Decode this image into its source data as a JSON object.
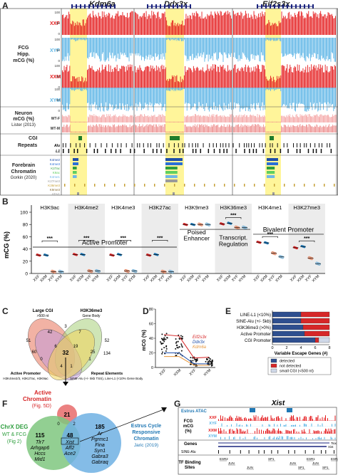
{
  "panelA": {
    "letter": "A",
    "genes": [
      "Kdm6a",
      "Ddx3x",
      "Eif2s3x"
    ],
    "fcg_title": [
      "FCG",
      "Hipp.",
      "mCG (%)"
    ],
    "fcg_tracks": [
      "XXF",
      "XYF",
      "XXM",
      "XYM"
    ],
    "track_ticks": [
      "100",
      "50",
      "0"
    ],
    "neuron_title": [
      "Neuron",
      "mCG (%)",
      "Lister (2013)"
    ],
    "neuron_tracks": [
      "WT-F",
      "WT-M"
    ],
    "cgi_label": "CGI",
    "repeats_label": "Repeats",
    "repeat_tracks": [
      "Alu",
      "L1"
    ],
    "chromatin_title": [
      "Forebrain",
      "Chromatin",
      "Gorkin (2020)"
    ],
    "chromatin_tracks": [
      "K4me2",
      "K4me3",
      "K27ac",
      "K9ac",
      "K4me1",
      "K27me3",
      "K36me3",
      "K9me3",
      "ATAC"
    ],
    "chromatin_colors": [
      "#1f4ea8",
      "#2a6fd6",
      "#2e9e3e",
      "#5fcf5f",
      "#6fb7e8",
      "#9a9a9a",
      "#c7a23a",
      "#8a6f3a",
      "#999999"
    ],
    "colors": {
      "xxf": "#e41a1c",
      "xyf": "#5ab4e5",
      "highlight": "#fff59a"
    }
  },
  "panelB": {
    "letter": "B",
    "ylabel": "mCG (%)",
    "marks": [
      "H3K9ac",
      "H3K4me2",
      "H3K4me3",
      "H3K27ac",
      "H3K9me3",
      "H3K36me3",
      "H3K4me1",
      "H3K27me3"
    ],
    "yticks": [
      "100",
      "80",
      "60",
      "40",
      "20",
      "0"
    ],
    "groups": [
      "Active Promoter",
      "Poised Enhancer",
      "Transcript. Regulation",
      "Bivalent Promoter"
    ],
    "sig": "***",
    "xlabels": [
      "XXF",
      "XXM",
      "XYF",
      "XYM"
    ],
    "chart_data": {
      "type": "scatter",
      "categories": [
        "XXF",
        "XXM",
        "XYF",
        "XYM"
      ],
      "ylim": [
        0,
        100
      ],
      "series": [
        {
          "name": "H3K9ac",
          "values": [
            30,
            30,
            3,
            3
          ]
        },
        {
          "name": "H3K4me2",
          "values": [
            31,
            31,
            4,
            4
          ]
        },
        {
          "name": "H3K4me3",
          "values": [
            30,
            31,
            4,
            4
          ]
        },
        {
          "name": "H3K27ac",
          "values": [
            30,
            31,
            3,
            3
          ]
        },
        {
          "name": "H3K9me3",
          "values": [
            80,
            80,
            80,
            80
          ]
        },
        {
          "name": "H3K36me3",
          "values": [
            81,
            82,
            75,
            75
          ]
        },
        {
          "name": "H3K4me1",
          "values": [
            51,
            50,
            33,
            27
          ]
        },
        {
          "name": "H3K27me3",
          "values": [
            42,
            44,
            25,
            16
          ]
        }
      ]
    }
  },
  "panelC": {
    "letter": "C",
    "sets": [
      {
        "name": "Large CGI",
        "detail": ">500 nt"
      },
      {
        "name": "H3K36me3",
        "detail": "Gene Body"
      },
      {
        "name": "Active Promoter",
        "detail": "H3K4me2/3, H3K27ac, H3K9ac"
      },
      {
        "name": "Repeat Elements",
        "detail": "SINE-Alu (+/- 5kb TSS), Line-L1 (<10% Gene Body)"
      }
    ],
    "counts": [
      "51",
      "52",
      "3",
      "134",
      "42",
      "7",
      "60",
      "25",
      "32",
      "6",
      "19",
      "0",
      "1",
      "4",
      "1"
    ]
  },
  "panelD": {
    "letter": "D",
    "ylabel": "mCG (%)",
    "yticks": [
      "80",
      "60",
      "40",
      "20",
      "0"
    ],
    "legend": [
      "Eif2s3x",
      "Ddx3x",
      "Kdm6a"
    ],
    "chart_data": {
      "type": "scatter",
      "categories": [
        "XXF",
        "XXM",
        "XYF",
        "XYM"
      ],
      "ylim": [
        0,
        80
      ],
      "series": [
        {
          "name": "Eif2s3x",
          "values": [
            45,
            43,
            13,
            14
          ]
        },
        {
          "name": "Ddx3x",
          "values": [
            20,
            20,
            5,
            5
          ]
        },
        {
          "name": "Kdm6a",
          "values": [
            15,
            15,
            3,
            3
          ]
        }
      ]
    }
  },
  "panelE": {
    "letter": "E",
    "title": "Variable Escape Genes (#)",
    "categories": [
      "LINE-L1 (<10%)",
      "SINE-Alu (+/- 5kb)",
      "H3K36me3 (>0%)",
      "Active Promoter",
      "CGI Promoter"
    ],
    "xticks": [
      "0",
      "2",
      "4",
      "6",
      "8"
    ],
    "legend": [
      "detected",
      "not detected",
      "small CGI (<500 nt)"
    ],
    "chart_data": {
      "type": "bar",
      "categories": [
        "LINE-L1 (<10%)",
        "SINE-Alu (+/- 5kb)",
        "H3K36me3 (>0%)",
        "Active Promoter",
        "CGI Promoter"
      ],
      "series": [
        {
          "name": "detected",
          "values": [
            4,
            4,
            4.3,
            4.5,
            6
          ]
        },
        {
          "name": "not detected",
          "values": [
            4,
            4,
            3.7,
            3.5,
            0.5
          ]
        },
        {
          "name": "small CGI (<500 nt)",
          "values": [
            0,
            0,
            0,
            0,
            1.5
          ]
        }
      ],
      "xlim": [
        0,
        8
      ]
    }
  },
  "panelF": {
    "letter": "F",
    "active": [
      "Active",
      "Chromatin",
      "(Fig. 5D)"
    ],
    "chrx": [
      "ChrX DEG",
      "WT & FCG",
      "(Fig 2)"
    ],
    "estrus": [
      "Estrus Cycle",
      "Responsive",
      "Chromatin",
      "Jaric (2019)"
    ],
    "n_top": "21",
    "n_left_center": "0",
    "n_right_center": "2",
    "n_left": "115",
    "left_genes": [
      "Tlr7",
      "Arhgap6",
      "Hccs",
      "Mid1"
    ],
    "n_center": "48",
    "center_genes": [
      "Xist",
      "Aff2",
      "Ace2"
    ],
    "n_right": "185",
    "right_genes": [
      "Ar",
      "Pgrmc1",
      "Fina",
      "Syn1",
      "Gabra3",
      "Gabraq"
    ]
  },
  "panelG": {
    "letter": "G",
    "title": "Xist",
    "atac": "Estrus ATAC",
    "fcg": [
      "FCG",
      "mCG",
      "(%)"
    ],
    "tracks": [
      "XXF",
      "XYF",
      "XXM",
      "XYM"
    ],
    "genes_label": "Genes",
    "gene_names": [
      "Tsix",
      "Xist"
    ],
    "sine": "SINE-Alu",
    "tf_label": [
      "TF Binding",
      "Sites"
    ],
    "tfs": [
      "ESR2",
      "JUN",
      "JUN",
      "SP1",
      "JUN",
      "SP1",
      "ESR1",
      "JUN",
      "SP1",
      "ESR2"
    ]
  }
}
